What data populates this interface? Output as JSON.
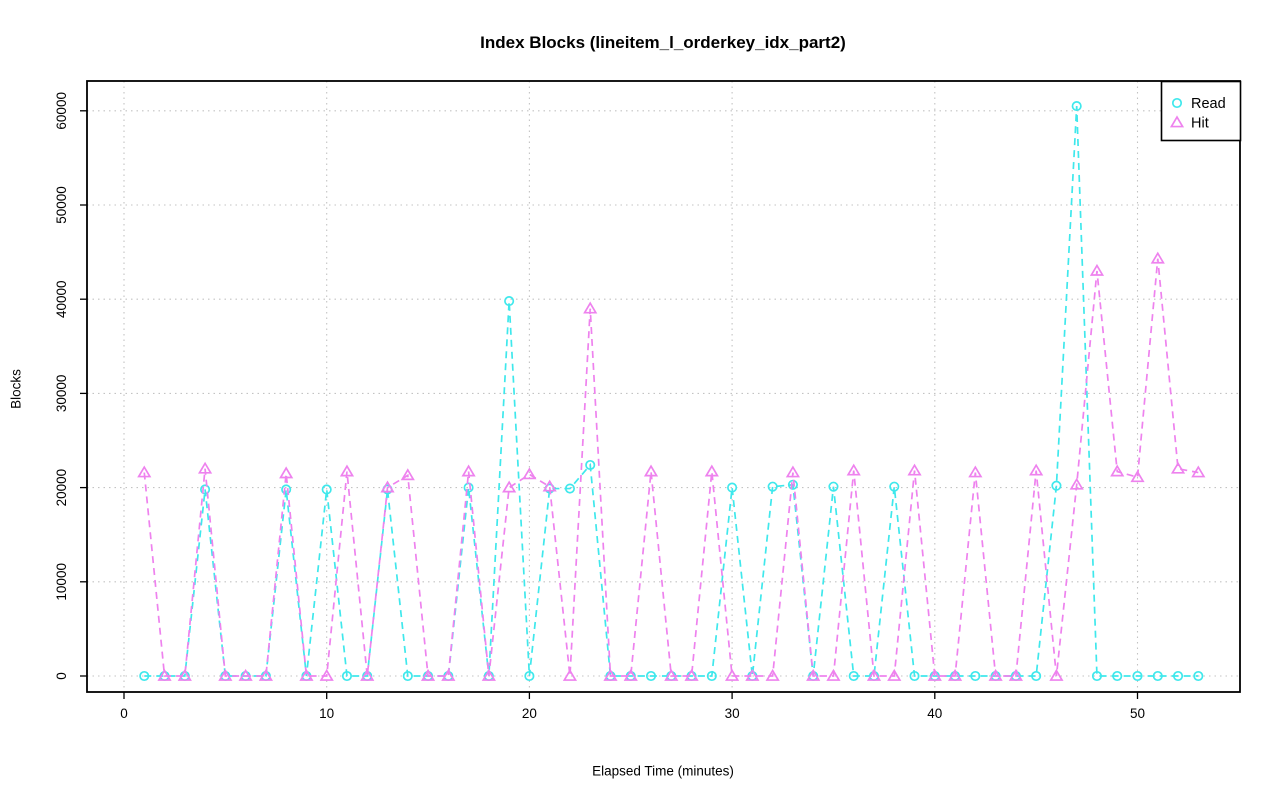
{
  "title": "Index Blocks (lineitem_l_orderkey_idx_part2)",
  "x_axis": {
    "label": "Elapsed Time (minutes)",
    "ticks": [
      0,
      10,
      20,
      30,
      40,
      50
    ]
  },
  "y_axis": {
    "label": "Blocks",
    "ticks": [
      0,
      10000,
      20000,
      30000,
      40000,
      50000,
      60000
    ]
  },
  "legend": {
    "position": "top-right",
    "items": [
      {
        "label": "Read",
        "marker": "circle",
        "color": "#3fe8ec"
      },
      {
        "label": "Hit",
        "marker": "triangle",
        "color": "#ee82ee"
      }
    ]
  },
  "colors": {
    "grid": "#c3c3c3",
    "axis": "#000000",
    "background": "#ffffff"
  },
  "chart_data": {
    "type": "line",
    "title": "Index Blocks (lineitem_l_orderkey_idx_part2)",
    "xlabel": "Elapsed Time (minutes)",
    "ylabel": "Blocks",
    "xlim": [
      -1.8,
      55.2
    ],
    "ylim": [
      -1700,
      63200
    ],
    "grid": true,
    "grid_style": "dotted",
    "line_style": "dashed",
    "legend_position": "top-right",
    "x": [
      1,
      2,
      3,
      4,
      5,
      6,
      7,
      8,
      9,
      10,
      11,
      12,
      13,
      14,
      15,
      16,
      17,
      18,
      19,
      20,
      21,
      22,
      23,
      24,
      25,
      26,
      27,
      28,
      29,
      30,
      31,
      32,
      33,
      34,
      35,
      36,
      37,
      38,
      39,
      40,
      41,
      42,
      43,
      44,
      45,
      46,
      47,
      48,
      49,
      50,
      51,
      52,
      53
    ],
    "series": [
      {
        "name": "Read",
        "color": "#3fe8ec",
        "marker": "circle",
        "values": [
          0,
          0,
          0,
          19800,
          0,
          0,
          0,
          19800,
          0,
          19800,
          0,
          0,
          19800,
          0,
          0,
          0,
          20000,
          0,
          39800,
          0,
          19900,
          19900,
          22400,
          0,
          0,
          0,
          0,
          0,
          0,
          20000,
          0,
          20100,
          20300,
          0,
          20100,
          0,
          0,
          20100,
          0,
          0,
          0,
          0,
          0,
          0,
          0,
          20200,
          60500,
          0,
          0,
          0,
          0,
          0,
          0
        ]
      },
      {
        "name": "Hit",
        "color": "#ee82ee",
        "marker": "triangle",
        "values": [
          21600,
          0,
          0,
          22000,
          0,
          0,
          0,
          21500,
          0,
          0,
          21700,
          0,
          20000,
          21300,
          0,
          0,
          21700,
          0,
          20000,
          21400,
          20100,
          0,
          39000,
          0,
          0,
          21700,
          0,
          0,
          21700,
          0,
          0,
          0,
          21600,
          0,
          0,
          21800,
          0,
          0,
          21800,
          0,
          0,
          21600,
          0,
          0,
          21800,
          0,
          20300,
          43000,
          21700,
          21100,
          44300,
          22000,
          21600
        ]
      }
    ]
  }
}
